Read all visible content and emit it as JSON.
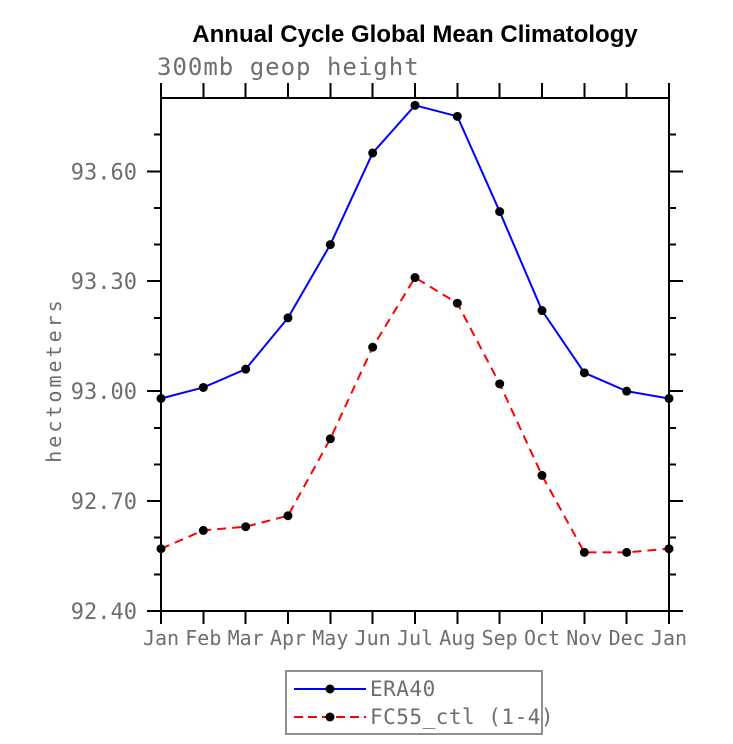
{
  "chart_data": {
    "type": "line",
    "title": "Annual Cycle Global Mean Climatology",
    "subtitle": "300mb geop height",
    "ylabel": "hectometers",
    "xlabel": "",
    "categories": [
      "Jan",
      "Feb",
      "Mar",
      "Apr",
      "May",
      "Jun",
      "Jul",
      "Aug",
      "Sep",
      "Oct",
      "Nov",
      "Dec",
      "Jan"
    ],
    "series": [
      {
        "name": "ERA40",
        "color": "#0000ff",
        "style": "solid",
        "marker": "filled-circle",
        "values": [
          92.98,
          93.01,
          93.06,
          93.2,
          93.4,
          93.65,
          93.78,
          93.75,
          93.49,
          93.22,
          93.05,
          93.0,
          92.98
        ]
      },
      {
        "name": "FC55_ctl (1-4)",
        "color": "#ff0000",
        "style": "dashed",
        "marker": "filled-circle",
        "values": [
          92.57,
          92.62,
          92.63,
          92.66,
          92.87,
          93.12,
          93.31,
          93.24,
          93.02,
          92.77,
          92.56,
          92.56,
          92.57
        ]
      }
    ],
    "ylim": [
      92.4,
      93.8
    ],
    "y_major_ticks": [
      92.4,
      92.7,
      93.0,
      93.3,
      93.6
    ],
    "y_major_tick_labels": [
      "92.40",
      "92.70",
      "93.00",
      "93.30",
      "93.60"
    ],
    "y_minor_step": 0.1,
    "y_minor_max": 93.7,
    "grid": "off",
    "legend_position": "bottom-center",
    "marker_color": "#000000",
    "axis_color": "#000000",
    "tick_text_color": "#6e6e6e",
    "title_color": "#000000"
  }
}
